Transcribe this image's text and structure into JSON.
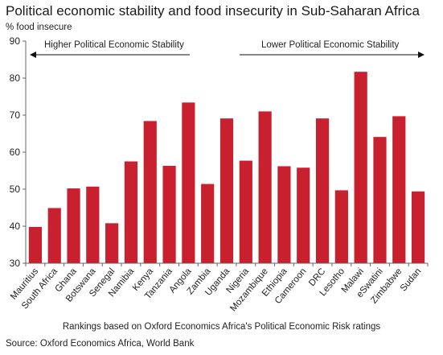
{
  "chart_data": {
    "type": "bar",
    "title": "Political economic stability and food insecurity in Sub-Saharan Africa",
    "ylabel": "% food insecure",
    "xlabel": "Rankings based on Oxford Economics Africa's Political Economic Risk ratings",
    "source": "Source: Oxford Economics Africa, World Bank",
    "annotations": {
      "left_arrow": "Higher Political Economic Stability",
      "right_arrow": "Lower Political Economic Stability"
    },
    "ylim": [
      30,
      90
    ],
    "yticks": [
      30,
      40,
      50,
      60,
      70,
      80,
      90
    ],
    "grid": false,
    "bar_color": "#c8202f",
    "categories": [
      "Mauritius",
      "South Africa",
      "Ghana",
      "Botswana",
      "Senegal",
      "Namibia",
      "Kenya",
      "Tanzania",
      "Angola",
      "Zambia",
      "Uganda",
      "Nigeria",
      "Mozambique",
      "Ethiopia",
      "Cameroon",
      "DRC",
      "Lesotho",
      "Malawi",
      "eSwatini",
      "Zimbabwe",
      "Sudan"
    ],
    "values": [
      39.8,
      44.9,
      50.2,
      50.7,
      40.8,
      57.5,
      68.4,
      56.3,
      73.4,
      51.4,
      69.1,
      57.7,
      71.0,
      56.2,
      55.8,
      69.1,
      49.7,
      81.7,
      64.1,
      69.7,
      49.4
    ]
  }
}
